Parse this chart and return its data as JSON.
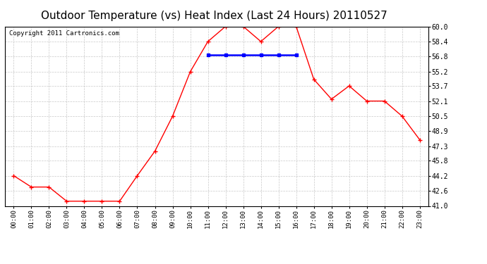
{
  "title": "Outdoor Temperature (vs) Heat Index (Last 24 Hours) 20110527",
  "copyright": "Copyright 2011 Cartronics.com",
  "x_labels": [
    "00:00",
    "01:00",
    "02:00",
    "03:00",
    "04:00",
    "05:00",
    "06:00",
    "07:00",
    "08:00",
    "09:00",
    "10:00",
    "11:00",
    "12:00",
    "13:00",
    "14:00",
    "15:00",
    "16:00",
    "17:00",
    "18:00",
    "19:00",
    "20:00",
    "21:00",
    "22:00",
    "23:00"
  ],
  "red_values": [
    44.2,
    43.0,
    43.0,
    41.5,
    41.5,
    41.5,
    41.5,
    44.2,
    46.8,
    50.5,
    55.2,
    58.4,
    60.0,
    60.0,
    58.4,
    60.0,
    60.0,
    54.4,
    52.3,
    53.7,
    52.1,
    52.1,
    50.5,
    48.0
  ],
  "blue_values": [
    null,
    null,
    null,
    null,
    null,
    null,
    null,
    null,
    null,
    null,
    null,
    57.0,
    57.0,
    57.0,
    57.0,
    57.0,
    57.0,
    null,
    null,
    null,
    null,
    null,
    null,
    null
  ],
  "y_min": 41.0,
  "y_max": 60.0,
  "y_ticks": [
    41.0,
    42.6,
    44.2,
    45.8,
    47.3,
    48.9,
    50.5,
    52.1,
    53.7,
    55.2,
    56.8,
    58.4,
    60.0
  ],
  "red_color": "#ff0000",
  "blue_color": "#0000ff",
  "bg_color": "#ffffff",
  "grid_color": "#bbbbbb",
  "title_fontsize": 11,
  "copyright_fontsize": 6.5
}
